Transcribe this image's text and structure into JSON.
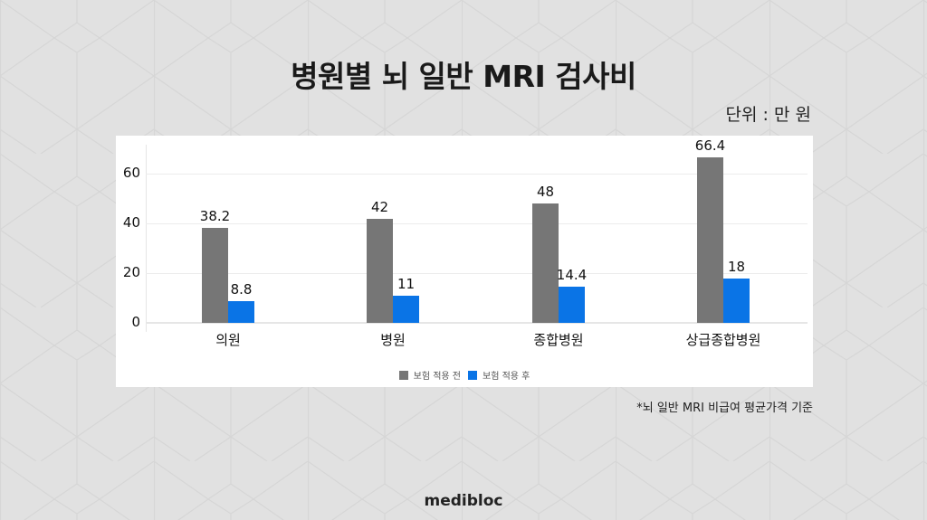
{
  "title": "병원별 뇌 일반 MRI 검사비",
  "unit_label": "단위 : 만 원",
  "footnote": "*뇌 일반 MRI 비급여 평균가격 기준",
  "brand": "medibloc",
  "colors": {
    "background": "#e1e1e1",
    "pattern_line": "#d6d6d6",
    "series_before": "#767676",
    "series_after": "#0a74e6"
  },
  "chart_data": {
    "type": "bar",
    "title": "병원별 뇌 일반 MRI 검사비",
    "xlabel": "",
    "ylabel": "",
    "unit": "만 원",
    "categories": [
      "의원",
      "병원",
      "종합병원",
      "상급종합병원"
    ],
    "series": [
      {
        "name": "보험 적용 전",
        "color": "#767676",
        "values": [
          38.2,
          42,
          48,
          66.4
        ],
        "labels": [
          "38.2",
          "42",
          "48",
          "66.4"
        ]
      },
      {
        "name": "보험 적용 후",
        "color": "#0a74e6",
        "values": [
          8.8,
          11,
          14.4,
          18
        ],
        "labels": [
          "8.8",
          "11",
          "14.4",
          "18"
        ]
      }
    ],
    "yticks": [
      "0",
      "20",
      "40",
      "60"
    ],
    "ylim": [
      0,
      75
    ],
    "grid": true,
    "legend_position": "bottom"
  }
}
